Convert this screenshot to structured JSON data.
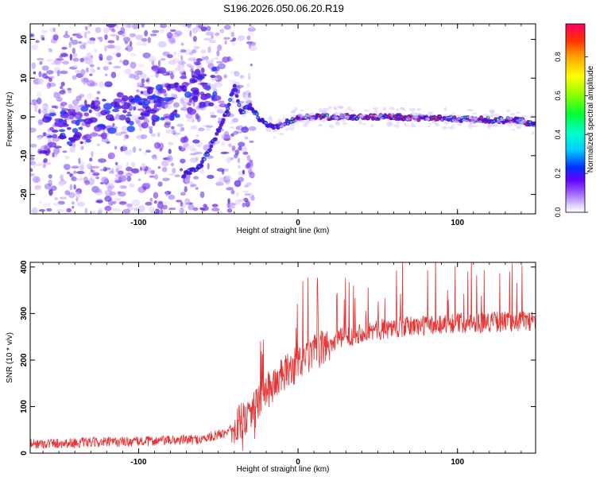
{
  "title": "S196.2026.050.06.20.R19",
  "colors": {
    "snr_line": "#e53333",
    "heat_base": "#6a1fd0"
  },
  "chart_data": [
    {
      "type": "heatmap",
      "name": "spectrogram",
      "xlabel": "Height of straight line (km)",
      "ylabel": "Frequency (Hz)",
      "xlim": [
        -168,
        149
      ],
      "ylim": [
        -25,
        24
      ],
      "xticks": [
        -100,
        0,
        100
      ],
      "xtick_labels": [
        "-100",
        "0",
        "100"
      ],
      "yticks": [
        -20,
        -10,
        0,
        10,
        20
      ],
      "ytick_labels": [
        "-20",
        "-10",
        "0",
        "10",
        "20"
      ],
      "colorbar": {
        "label": "Normalized spectral amplitude",
        "range": [
          0,
          0.97
        ],
        "ticks": [
          0.0,
          0.2,
          0.4,
          0.6,
          0.8
        ],
        "tick_labels": [
          "0.0",
          "0.2",
          "0.4",
          "0.6",
          "0.8"
        ]
      },
      "ridge": {
        "description_points_x": [
          -72,
          -62,
          -55,
          -48,
          -44,
          -40,
          -36,
          -30,
          -25,
          -20,
          -15,
          -10,
          -5,
          0,
          10,
          30,
          60,
          100,
          140,
          149
        ],
        "description_points_y": [
          -15,
          -13,
          -8,
          -2,
          2,
          8,
          1,
          3,
          0,
          -2,
          -3,
          -2,
          -1,
          0,
          0,
          0,
          0,
          -0.5,
          -1,
          -2
        ]
      }
    },
    {
      "type": "line",
      "name": "snr",
      "xlabel": "Height of straight line (km)",
      "ylabel": "SNR (10 * v/v)",
      "xlim": [
        -168,
        149
      ],
      "ylim": [
        0,
        410
      ],
      "xticks": [
        -100,
        0,
        100
      ],
      "xtick_labels": [
        "-100",
        "0",
        "100"
      ],
      "yticks": [
        0,
        100,
        200,
        300,
        400
      ],
      "ytick_labels": [
        "0",
        "100",
        "200",
        "300",
        "400"
      ],
      "trend_x": [
        -168,
        -100,
        -60,
        -45,
        -35,
        -25,
        -15,
        -5,
        10,
        25,
        40,
        60,
        80,
        100,
        120,
        149
      ],
      "trend_y": [
        20,
        25,
        30,
        45,
        70,
        110,
        150,
        180,
        215,
        245,
        260,
        270,
        275,
        280,
        282,
        285
      ]
    }
  ]
}
